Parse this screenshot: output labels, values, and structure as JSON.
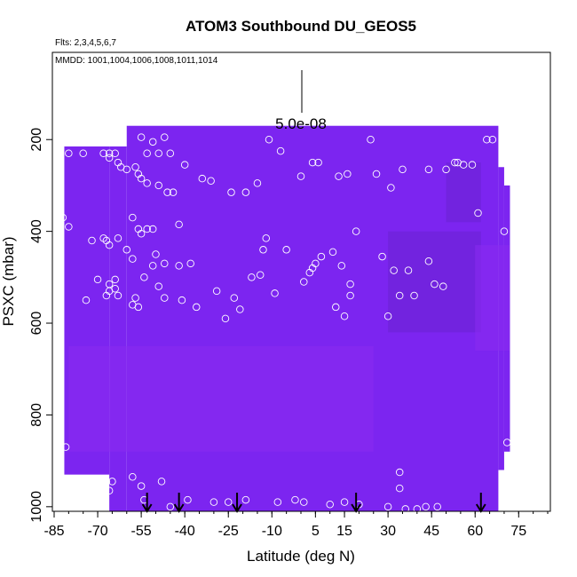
{
  "chart_data": {
    "type": "heatmap",
    "title": "ATOM3 Southbound DU_GEOS5",
    "flights_label": "Flts: 2,3,4,5,6,7",
    "dates_label": "MMDD: 1001,1004,1006,1008,1011,1014",
    "xlabel": "Latitude (deg N)",
    "ylabel": "PSXC (mbar)",
    "xlim": [
      -85,
      85
    ],
    "ylim": [
      1010,
      10
    ],
    "x_ticks": [
      -85,
      -70,
      -55,
      -40,
      -25,
      -10,
      5,
      15,
      30,
      45,
      60,
      75
    ],
    "x_tick_labels": [
      "-85",
      "-70",
      "-55",
      "-40",
      "-25",
      "-10",
      "5",
      "15",
      "30",
      "45",
      "60",
      "75"
    ],
    "y_ticks": [
      200,
      400,
      600,
      800,
      1000
    ],
    "y_tick_labels": [
      "200",
      "400",
      "600",
      "800",
      "1000"
    ],
    "scale_bar_label": "5.0e-08",
    "colors": {
      "field_base": "#7c25f0",
      "field_dark": "#6a22d2",
      "field_light": "#8a2cf0",
      "marker": "#ffffff"
    },
    "field_columns": [
      {
        "lat": [
          -81.5,
          -66
        ],
        "top": 215,
        "bottom": 930
      },
      {
        "lat": [
          -66,
          -60
        ],
        "top": 215,
        "bottom": 1010
      },
      {
        "lat": [
          -60,
          68
        ],
        "top": 170,
        "bottom": 1010
      },
      {
        "lat": [
          68,
          70
        ],
        "top": 260,
        "bottom": 920
      },
      {
        "lat": [
          70,
          72
        ],
        "top": 300,
        "bottom": 880
      }
    ],
    "field_patches": [
      {
        "lat": [
          30,
          62
        ],
        "p": [
          400,
          620
        ],
        "shade": "dark"
      },
      {
        "lat": [
          50,
          62
        ],
        "p": [
          250,
          380
        ],
        "shade": "dark"
      },
      {
        "lat": [
          60,
          72
        ],
        "p": [
          430,
          660
        ],
        "shade": "light"
      },
      {
        "lat": [
          -80,
          25
        ],
        "p": [
          650,
          880
        ],
        "shade": "light"
      }
    ],
    "arrow_latitudes": [
      -53,
      -42,
      -22,
      19,
      62
    ],
    "observations": [
      {
        "lat": -80,
        "p": 230
      },
      {
        "lat": -75,
        "p": 230
      },
      {
        "lat": -68,
        "p": 230
      },
      {
        "lat": -66,
        "p": 230
      },
      {
        "lat": -64,
        "p": 230
      },
      {
        "lat": -66,
        "p": 240
      },
      {
        "lat": -63,
        "p": 250
      },
      {
        "lat": -62,
        "p": 260
      },
      {
        "lat": -60,
        "p": 265
      },
      {
        "lat": -57,
        "p": 260
      },
      {
        "lat": -56,
        "p": 275
      },
      {
        "lat": -55,
        "p": 285
      },
      {
        "lat": -53,
        "p": 295
      },
      {
        "lat": -49,
        "p": 300
      },
      {
        "lat": -55,
        "p": 195
      },
      {
        "lat": -51,
        "p": 205
      },
      {
        "lat": -47,
        "p": 195
      },
      {
        "lat": -53,
        "p": 230
      },
      {
        "lat": -49,
        "p": 230
      },
      {
        "lat": -45,
        "p": 230
      },
      {
        "lat": -40,
        "p": 255
      },
      {
        "lat": -34,
        "p": 285
      },
      {
        "lat": -31,
        "p": 290
      },
      {
        "lat": -24,
        "p": 315
      },
      {
        "lat": -19,
        "p": 315
      },
      {
        "lat": -46,
        "p": 315
      },
      {
        "lat": -44,
        "p": 315
      },
      {
        "lat": -82,
        "p": 370
      },
      {
        "lat": -80,
        "p": 390
      },
      {
        "lat": -72,
        "p": 420
      },
      {
        "lat": -68,
        "p": 415
      },
      {
        "lat": -67,
        "p": 420
      },
      {
        "lat": -66,
        "p": 430
      },
      {
        "lat": -63,
        "p": 415
      },
      {
        "lat": -58,
        "p": 370
      },
      {
        "lat": -56,
        "p": 395
      },
      {
        "lat": -55,
        "p": 405
      },
      {
        "lat": -53,
        "p": 395
      },
      {
        "lat": -51,
        "p": 395
      },
      {
        "lat": -42,
        "p": 385
      },
      {
        "lat": -60,
        "p": 440
      },
      {
        "lat": -58,
        "p": 460
      },
      {
        "lat": -50,
        "p": 450
      },
      {
        "lat": -47,
        "p": 470
      },
      {
        "lat": -51,
        "p": 475
      },
      {
        "lat": -42,
        "p": 475
      },
      {
        "lat": -38,
        "p": 470
      },
      {
        "lat": -70,
        "p": 505
      },
      {
        "lat": -66,
        "p": 515
      },
      {
        "lat": -64,
        "p": 505
      },
      {
        "lat": -66,
        "p": 530
      },
      {
        "lat": -64,
        "p": 525
      },
      {
        "lat": -67,
        "p": 540
      },
      {
        "lat": -63,
        "p": 540
      },
      {
        "lat": -54,
        "p": 500
      },
      {
        "lat": -49,
        "p": 520
      },
      {
        "lat": -57,
        "p": 545
      },
      {
        "lat": -58,
        "p": 560
      },
      {
        "lat": -56,
        "p": 565
      },
      {
        "lat": -47,
        "p": 545
      },
      {
        "lat": -41,
        "p": 550
      },
      {
        "lat": -36,
        "p": 565
      },
      {
        "lat": -29,
        "p": 530
      },
      {
        "lat": -26,
        "p": 590
      },
      {
        "lat": -23,
        "p": 545
      },
      {
        "lat": -21,
        "p": 570
      },
      {
        "lat": -74,
        "p": 550
      },
      {
        "lat": -17,
        "p": 500
      },
      {
        "lat": -14,
        "p": 495
      },
      {
        "lat": -15,
        "p": 295
      },
      {
        "lat": -12,
        "p": 415
      },
      {
        "lat": -7,
        "p": 225
      },
      {
        "lat": -13,
        "p": 440
      },
      {
        "lat": -9,
        "p": 535
      },
      {
        "lat": -5,
        "p": 440
      },
      {
        "lat": -11,
        "p": 200
      },
      {
        "lat": 0,
        "p": 280
      },
      {
        "lat": 4,
        "p": 250
      },
      {
        "lat": 6,
        "p": 250
      },
      {
        "lat": 1,
        "p": 510
      },
      {
        "lat": 3,
        "p": 490
      },
      {
        "lat": 4,
        "p": 480
      },
      {
        "lat": 5,
        "p": 470
      },
      {
        "lat": 7,
        "p": 455
      },
      {
        "lat": 11,
        "p": 445
      },
      {
        "lat": 13,
        "p": 280
      },
      {
        "lat": 16,
        "p": 275
      },
      {
        "lat": 14,
        "p": 475
      },
      {
        "lat": 17,
        "p": 515
      },
      {
        "lat": 15,
        "p": 585
      },
      {
        "lat": 12,
        "p": 565
      },
      {
        "lat": 17,
        "p": 540
      },
      {
        "lat": 19,
        "p": 400
      },
      {
        "lat": 24,
        "p": 200
      },
      {
        "lat": 26,
        "p": 275
      },
      {
        "lat": 31,
        "p": 305
      },
      {
        "lat": 35,
        "p": 265
      },
      {
        "lat": 44,
        "p": 265
      },
      {
        "lat": 50,
        "p": 265
      },
      {
        "lat": 53,
        "p": 250
      },
      {
        "lat": 54,
        "p": 250
      },
      {
        "lat": 56,
        "p": 255
      },
      {
        "lat": 59,
        "p": 255
      },
      {
        "lat": 61,
        "p": 360
      },
      {
        "lat": 64,
        "p": 200
      },
      {
        "lat": 66,
        "p": 200
      },
      {
        "lat": 70,
        "p": 400
      },
      {
        "lat": 71,
        "p": 860
      },
      {
        "lat": 28,
        "p": 455
      },
      {
        "lat": 32,
        "p": 485
      },
      {
        "lat": 34,
        "p": 540
      },
      {
        "lat": 37,
        "p": 485
      },
      {
        "lat": 39,
        "p": 540
      },
      {
        "lat": 46,
        "p": 515
      },
      {
        "lat": 49,
        "p": 520
      },
      {
        "lat": 44,
        "p": 465
      },
      {
        "lat": 30,
        "p": 585
      },
      {
        "lat": -69,
        "p": 950
      },
      {
        "lat": -67,
        "p": 945
      },
      {
        "lat": -65,
        "p": 945
      },
      {
        "lat": -68,
        "p": 960
      },
      {
        "lat": -66,
        "p": 965
      },
      {
        "lat": -58,
        "p": 935
      },
      {
        "lat": -55,
        "p": 955
      },
      {
        "lat": -48,
        "p": 945
      },
      {
        "lat": -54,
        "p": 985
      },
      {
        "lat": -45,
        "p": 1000
      },
      {
        "lat": -39,
        "p": 985
      },
      {
        "lat": -30,
        "p": 990
      },
      {
        "lat": -25,
        "p": 990
      },
      {
        "lat": -19,
        "p": 985
      },
      {
        "lat": -8,
        "p": 990
      },
      {
        "lat": -2,
        "p": 985
      },
      {
        "lat": 1,
        "p": 990
      },
      {
        "lat": 10,
        "p": 995
      },
      {
        "lat": 15,
        "p": 990
      },
      {
        "lat": 20,
        "p": 995
      },
      {
        "lat": 30,
        "p": 1000
      },
      {
        "lat": 34,
        "p": 925
      },
      {
        "lat": 34,
        "p": 960
      },
      {
        "lat": 36,
        "p": 1005
      },
      {
        "lat": 40,
        "p": 1005
      },
      {
        "lat": 43,
        "p": 1000
      },
      {
        "lat": 47,
        "p": 1000
      },
      {
        "lat": -81,
        "p": 870
      }
    ]
  }
}
